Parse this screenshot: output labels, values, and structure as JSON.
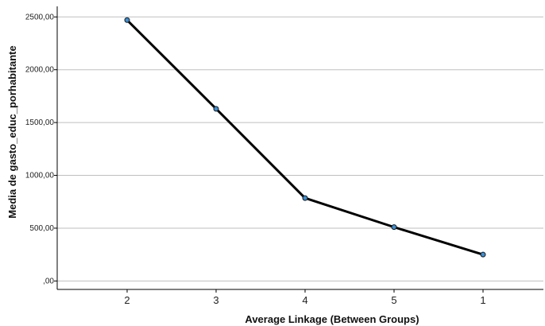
{
  "chart_data": {
    "type": "line",
    "xlabel": "Average Linkage (Between Groups)",
    "ylabel": "Media de gasto_educ_porhabitante",
    "categories": [
      "2",
      "3",
      "4",
      "5",
      "1"
    ],
    "series": [
      {
        "values": [
          2470,
          1630,
          785,
          510,
          250
        ]
      }
    ],
    "ylim": [
      -80,
      2600
    ],
    "yticks": [
      0,
      500,
      1000,
      1500,
      2000,
      2500
    ],
    "ytick_labels": [
      ",00",
      "500,00",
      "1000,00",
      "1500,00",
      "2000,00",
      "2500,00"
    ],
    "grid": true,
    "legend": "none",
    "colors": {
      "line": "#000000",
      "marker_fill": "#3a8fd6",
      "marker_stroke": "#1a1a1a",
      "grid": "#bfbfbf",
      "axis": "#000000"
    }
  }
}
